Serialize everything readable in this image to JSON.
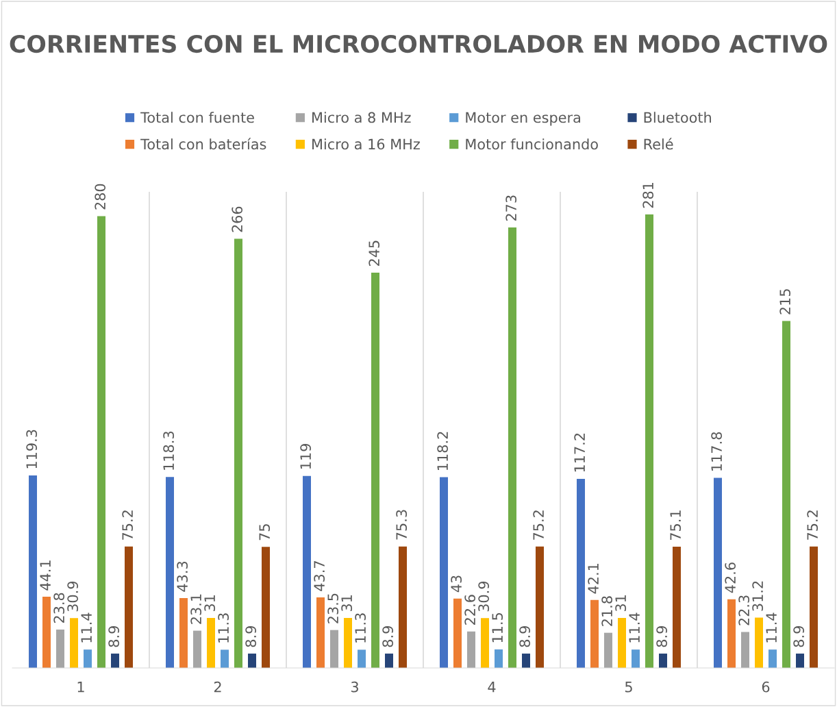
{
  "chart_data": {
    "type": "bar",
    "title": "CORRIENTES CON EL MICROCONTROLADOR EN MODO ACTIVO",
    "categories": [
      "1",
      "2",
      "3",
      "4",
      "5",
      "6"
    ],
    "series": [
      {
        "name": "Total con fuente",
        "color": "#4472c4",
        "values": [
          119.3,
          118.3,
          119,
          118.2,
          117.2,
          117.8
        ]
      },
      {
        "name": "Total con baterías",
        "color": "#ed7d31",
        "values": [
          44.1,
          43.3,
          43.7,
          43,
          42.1,
          42.6
        ]
      },
      {
        "name": "Micro a 8 MHz",
        "color": "#a5a5a5",
        "values": [
          23.8,
          23.1,
          23.5,
          22.6,
          21.8,
          22.3
        ]
      },
      {
        "name": "Micro a 16 MHz",
        "color": "#ffc000",
        "values": [
          30.9,
          31,
          31,
          30.9,
          31,
          31.2
        ]
      },
      {
        "name": "Motor en espera",
        "color": "#5b9bd5",
        "values": [
          11.4,
          11.3,
          11.3,
          11.5,
          11.4,
          11.4
        ]
      },
      {
        "name": "Motor funcionando",
        "color": "#70ad47",
        "values": [
          280,
          266,
          245,
          273,
          281,
          215
        ]
      },
      {
        "name": "Bluetooth",
        "color": "#264478",
        "values": [
          8.9,
          8.9,
          8.9,
          8.9,
          8.9,
          8.9
        ]
      },
      {
        "name": "Relé",
        "color": "#9e480e",
        "values": [
          75.2,
          75,
          75.3,
          75.2,
          75.1,
          75.2
        ]
      }
    ],
    "data_labels": true,
    "grid": "x",
    "legend": "top",
    "tick_labels": "x"
  }
}
